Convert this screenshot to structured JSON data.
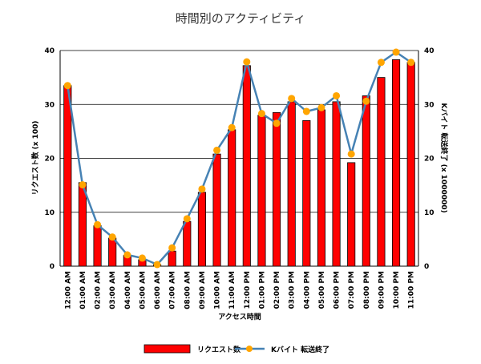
{
  "chart_data": {
    "type": "bar",
    "title": "時間別のアクティビティ",
    "xlabel": "アクセス時間",
    "ylabel": "リクエスト数 (x 100)",
    "y2label": "Kバイト 転送終了 (x 1000000)",
    "ylim": [
      0,
      40
    ],
    "y2lim": [
      0,
      40
    ],
    "yticks": [
      0,
      10,
      20,
      30,
      40
    ],
    "grid": true,
    "legend_position": "bottom",
    "categories": [
      "12:00 AM",
      "01:00 AM",
      "02:00 AM",
      "03:00 AM",
      "04:00 AM",
      "05:00 AM",
      "06:00 AM",
      "07:00 AM",
      "08:00 AM",
      "09:00 AM",
      "10:00 AM",
      "11:00 AM",
      "12:00 PM",
      "01:00 PM",
      "02:00 PM",
      "03:00 PM",
      "04:00 PM",
      "05:00 PM",
      "06:00 PM",
      "07:00 PM",
      "08:00 PM",
      "09:00 PM",
      "10:00 PM",
      "11:00 PM"
    ],
    "series": [
      {
        "name": "リクエスト数",
        "type": "bar",
        "axis": "left",
        "color": "#ff0000",
        "values": [
          33.5,
          15.5,
          7.5,
          5.2,
          2.0,
          1.2,
          0.3,
          2.8,
          8.3,
          13.7,
          20.8,
          25.3,
          37.2,
          28.0,
          28.5,
          30.5,
          27.0,
          29.0,
          30.5,
          19.2,
          31.6,
          35.0,
          38.3,
          37.8
        ]
      },
      {
        "name": "Kバイト 転送終了",
        "type": "line",
        "axis": "right",
        "color": "#4682b4",
        "marker_color": "#ffa500",
        "values": [
          33.5,
          15.1,
          7.7,
          5.4,
          2.1,
          1.5,
          0.3,
          3.4,
          8.8,
          14.3,
          21.5,
          25.7,
          37.9,
          28.3,
          26.5,
          31.1,
          28.7,
          29.4,
          31.6,
          20.8,
          30.6,
          37.8,
          39.7,
          37.8
        ]
      }
    ]
  }
}
